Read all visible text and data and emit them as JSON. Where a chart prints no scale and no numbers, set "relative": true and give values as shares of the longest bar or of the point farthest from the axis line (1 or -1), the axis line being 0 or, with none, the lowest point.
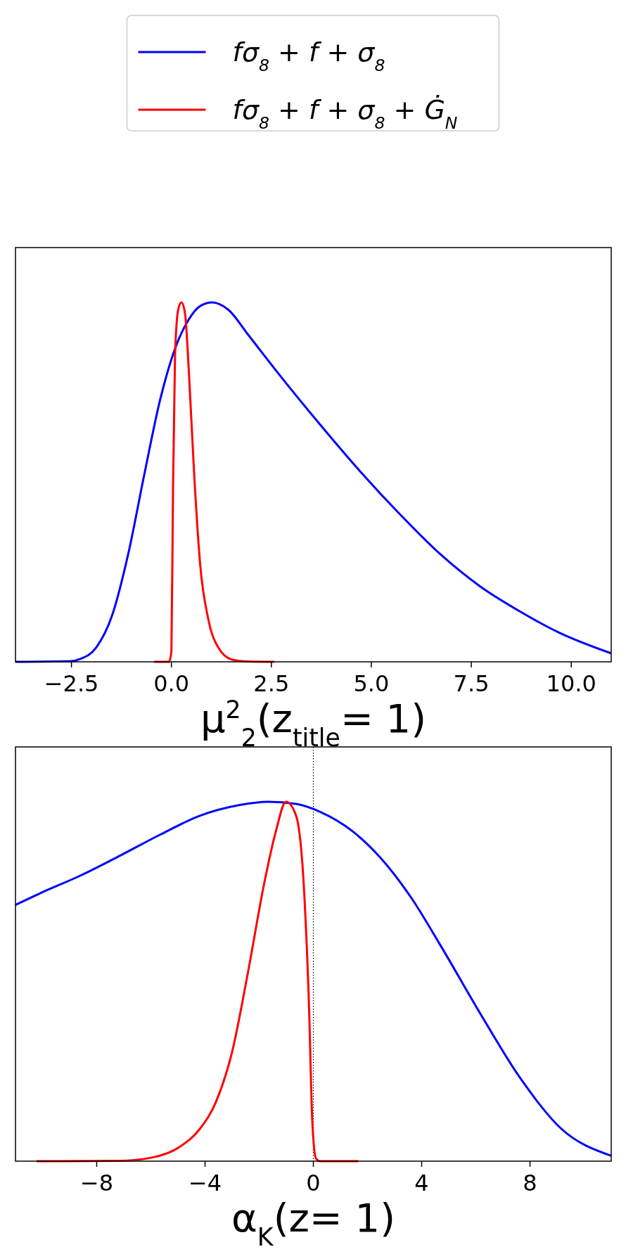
{
  "chart_data": [
    {
      "type": "line",
      "relative": true,
      "xlabel": "μ$^{2}$$_{2}$(z$_{title}$= 1)",
      "xlim": [
        -3.9,
        11
      ],
      "xticks": [
        {
          "value": -2.5,
          "label": "−2.5"
        },
        {
          "value": 0,
          "label": "0.0"
        },
        {
          "value": 2.5,
          "label": "2.5"
        },
        {
          "value": 5,
          "label": "5.0"
        },
        {
          "value": 7.5,
          "label": "7.5"
        },
        {
          "value": 10,
          "label": "10.0"
        }
      ],
      "tick_labels": "x",
      "legend": "top",
      "grid": false,
      "series": [
        {
          "name": "fσ$_{8}$ + f + σ$_{8}$",
          "color": "#0000ff",
          "x": [
            -3.9,
            -2.5,
            -2.28,
            -1.88,
            -1.48,
            -1.08,
            -0.68,
            -0.28,
            0.12,
            0.42,
            0.72,
            1.02,
            1.42,
            1.92,
            2.62,
            3.72,
            4.72,
            5.72,
            6.72,
            7.72,
            8.72,
            9.72,
            10.99
          ],
          "values": [
            0,
            0.002,
            0.008,
            0.04,
            0.13,
            0.3,
            0.52,
            0.73,
            0.88,
            0.95,
            0.99,
            1,
            0.98,
            0.91,
            0.81,
            0.66,
            0.53,
            0.41,
            0.3,
            0.21,
            0.14,
            0.08,
            0.024
          ]
        },
        {
          "name": "fσ$_{8}$ + f + σ$_{8}$ + Ġ$_{N}$",
          "color": "#ff0000",
          "x": [
            -0.43,
            -0.06,
            0,
            0.04,
            0.09,
            0.17,
            0.25,
            0.34,
            0.44,
            0.57,
            0.72,
            0.92,
            1.17,
            1.52,
            1.92,
            2.57
          ],
          "values": [
            0,
            0,
            0.03,
            0.48,
            0.85,
            0.98,
            1,
            0.97,
            0.8,
            0.52,
            0.27,
            0.12,
            0.04,
            0.006,
            0.001,
            0
          ]
        }
      ]
    },
    {
      "type": "line",
      "relative": true,
      "xlabel": "α$_{K}$(z= 1)",
      "xlim": [
        -11,
        11
      ],
      "xticks": [
        {
          "value": -8,
          "label": "−8"
        },
        {
          "value": -4,
          "label": "−4"
        },
        0,
        4,
        8
      ],
      "tick_labels": "x",
      "grid": false,
      "ref_lines": [
        {
          "axis": "x",
          "value": 0,
          "color": "#000000",
          "line_style": "dotted"
        }
      ],
      "series": [
        {
          "color": "#0000ff",
          "x": [
            -11,
            -10.1,
            -8.62,
            -7.14,
            -5.67,
            -4.19,
            -2.71,
            -1.67,
            -0.64,
            0.25,
            1.43,
            2.47,
            3.65,
            4.69,
            6.17,
            7.65,
            9.13,
            11
          ],
          "values": [
            0.713,
            0.745,
            0.794,
            0.85,
            0.908,
            0.961,
            0.991,
            1,
            0.994,
            0.972,
            0.919,
            0.845,
            0.729,
            0.601,
            0.41,
            0.23,
            0.092,
            0.015
          ]
        },
        {
          "color": "#ff0000",
          "x": [
            -10.22,
            -7.14,
            -5.96,
            -4.93,
            -4.19,
            -3.59,
            -3,
            -2.41,
            -1.82,
            -1.38,
            -1.01,
            -0.64,
            -0.34,
            -0.16,
            -0.04,
            0.1,
            0.25,
            1.66
          ],
          "values": [
            0,
            0.001,
            0.01,
            0.04,
            0.09,
            0.166,
            0.304,
            0.527,
            0.771,
            0.919,
            1,
            0.962,
            0.75,
            0.43,
            0.113,
            0.007,
            0,
            0
          ]
        }
      ]
    }
  ]
}
